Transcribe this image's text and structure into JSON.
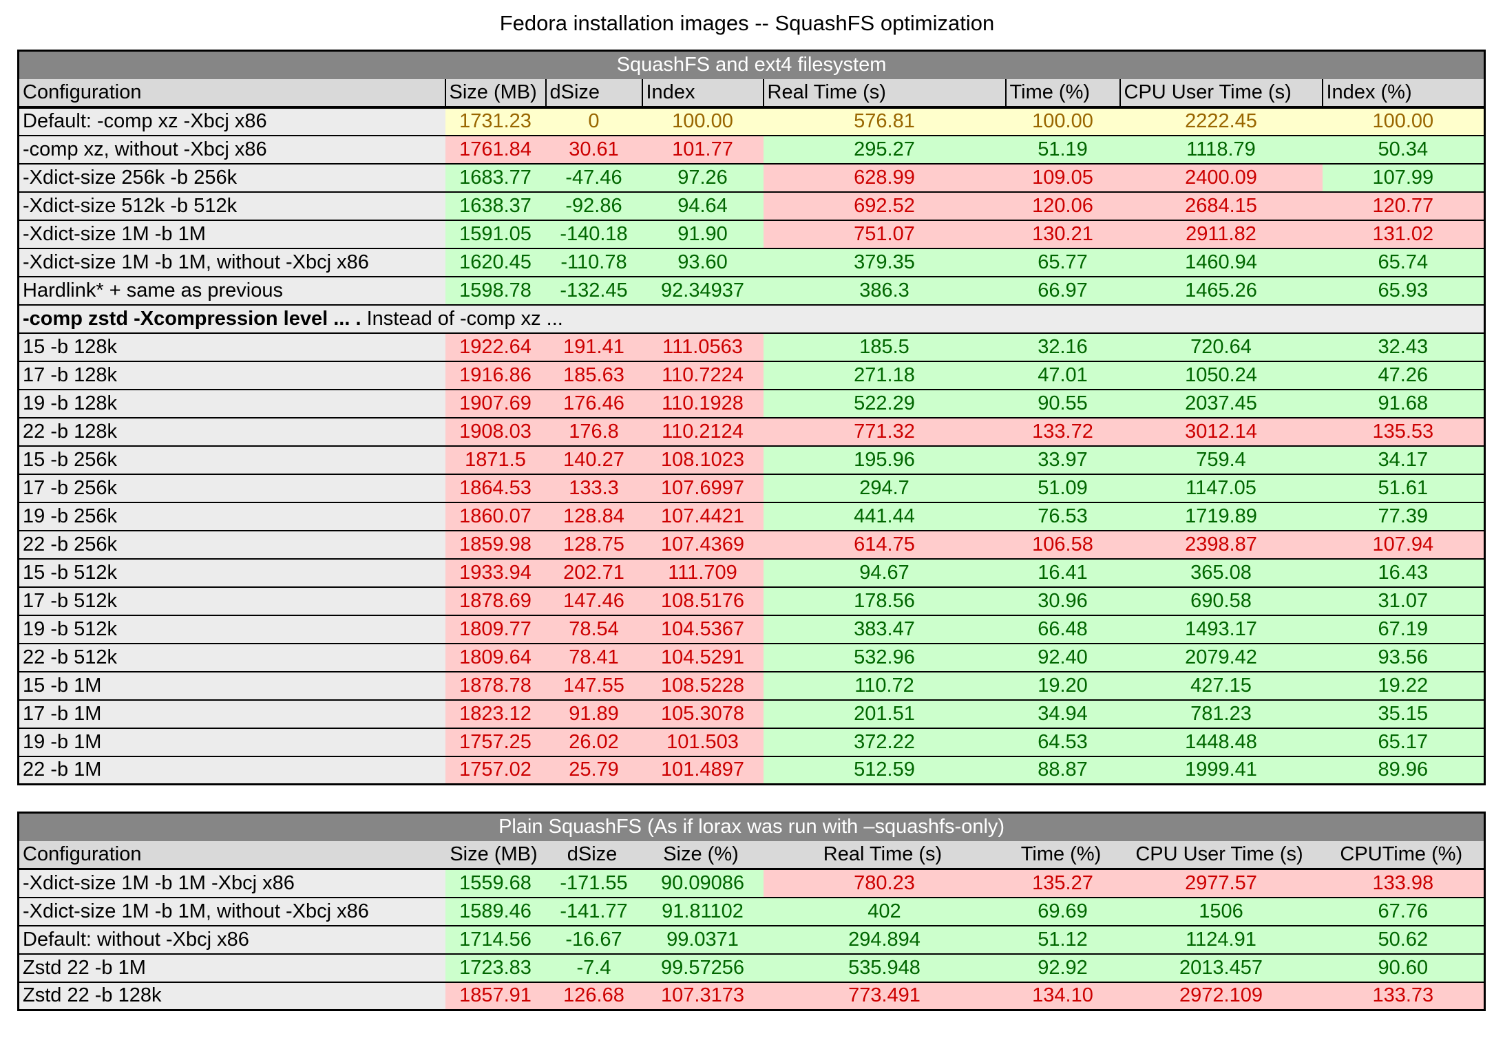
{
  "page_title": "Fedora installation images -- SquashFS optimization",
  "colors": {
    "good_bg": "#ccffcc",
    "good_text": "#006600",
    "bad_bg": "#ffcccc",
    "bad_text": "#cc0000",
    "neutral_bg": "#ffffcc",
    "neutral_text": "#996600",
    "title_bar_bg": "#868686",
    "title_bar_text": "#ffffff",
    "header_bg": "#d9d9d9",
    "config_bg": "#ececec"
  },
  "table1": {
    "title": "SquashFS and ext4 filesystem",
    "headers": [
      "Configuration",
      "Size (MB)",
      "dSize",
      "Index",
      "Real Time (s)",
      "Time (%)",
      "CPU User Time (s)",
      "Index (%)"
    ],
    "rows": [
      {
        "config": "Default: -comp xz -Xbcj x86",
        "cells": [
          {
            "v": "1731.23",
            "s": "n"
          },
          {
            "v": "0",
            "s": "n"
          },
          {
            "v": "100.00",
            "s": "n"
          },
          {
            "v": "576.81",
            "s": "n"
          },
          {
            "v": "100.00",
            "s": "n"
          },
          {
            "v": "2222.45",
            "s": "n"
          },
          {
            "v": "100.00",
            "s": "n"
          }
        ]
      },
      {
        "config": "-comp xz, without -Xbcj x86",
        "cells": [
          {
            "v": "1761.84",
            "s": "b"
          },
          {
            "v": "30.61",
            "s": "b"
          },
          {
            "v": "101.77",
            "s": "b"
          },
          {
            "v": "295.27",
            "s": "g"
          },
          {
            "v": "51.19",
            "s": "g"
          },
          {
            "v": "1118.79",
            "s": "g"
          },
          {
            "v": "50.34",
            "s": "g"
          }
        ]
      },
      {
        "config": "-Xdict-size 256k -b 256k",
        "cells": [
          {
            "v": "1683.77",
            "s": "g"
          },
          {
            "v": "-47.46",
            "s": "g"
          },
          {
            "v": "97.26",
            "s": "g"
          },
          {
            "v": "628.99",
            "s": "b"
          },
          {
            "v": "109.05",
            "s": "b"
          },
          {
            "v": "2400.09",
            "s": "b"
          },
          {
            "v": "107.99",
            "s": "g"
          }
        ]
      },
      {
        "config": "-Xdict-size 512k -b 512k",
        "cells": [
          {
            "v": "1638.37",
            "s": "g"
          },
          {
            "v": "-92.86",
            "s": "g"
          },
          {
            "v": "94.64",
            "s": "g"
          },
          {
            "v": "692.52",
            "s": "b"
          },
          {
            "v": "120.06",
            "s": "b"
          },
          {
            "v": "2684.15",
            "s": "b"
          },
          {
            "v": "120.77",
            "s": "b"
          }
        ]
      },
      {
        "config": "-Xdict-size 1M -b 1M",
        "cells": [
          {
            "v": "1591.05",
            "s": "g"
          },
          {
            "v": "-140.18",
            "s": "g"
          },
          {
            "v": "91.90",
            "s": "g"
          },
          {
            "v": "751.07",
            "s": "b"
          },
          {
            "v": "130.21",
            "s": "b"
          },
          {
            "v": "2911.82",
            "s": "b"
          },
          {
            "v": "131.02",
            "s": "b"
          }
        ]
      },
      {
        "config": "-Xdict-size 1M -b 1M, without -Xbcj x86",
        "cells": [
          {
            "v": "1620.45",
            "s": "g"
          },
          {
            "v": "-110.78",
            "s": "g"
          },
          {
            "v": "93.60",
            "s": "g"
          },
          {
            "v": "379.35",
            "s": "g"
          },
          {
            "v": "65.77",
            "s": "g"
          },
          {
            "v": "1460.94",
            "s": "g"
          },
          {
            "v": "65.74",
            "s": "g"
          }
        ]
      },
      {
        "config": "Hardlink* + same as previous",
        "cells": [
          {
            "v": "1598.78",
            "s": "g"
          },
          {
            "v": "-132.45",
            "s": "g"
          },
          {
            "v": "92.34937",
            "s": "g"
          },
          {
            "v": "386.3",
            "s": "g"
          },
          {
            "v": "66.97",
            "s": "g"
          },
          {
            "v": "1465.26",
            "s": "g"
          },
          {
            "v": "65.93",
            "s": "g"
          }
        ]
      },
      {
        "subtitle_bold": "-comp zstd -Xcompression level ... .",
        "subtitle_rest": " Instead of -comp xz ..."
      },
      {
        "config": "15 -b 128k",
        "cells": [
          {
            "v": "1922.64",
            "s": "b"
          },
          {
            "v": "191.41",
            "s": "b"
          },
          {
            "v": "111.0563",
            "s": "b"
          },
          {
            "v": "185.5",
            "s": "g"
          },
          {
            "v": "32.16",
            "s": "g"
          },
          {
            "v": "720.64",
            "s": "g"
          },
          {
            "v": "32.43",
            "s": "g"
          }
        ]
      },
      {
        "config": "17 -b 128k",
        "cells": [
          {
            "v": "1916.86",
            "s": "b"
          },
          {
            "v": "185.63",
            "s": "b"
          },
          {
            "v": "110.7224",
            "s": "b"
          },
          {
            "v": "271.18",
            "s": "g"
          },
          {
            "v": "47.01",
            "s": "g"
          },
          {
            "v": "1050.24",
            "s": "g"
          },
          {
            "v": "47.26",
            "s": "g"
          }
        ]
      },
      {
        "config": "19 -b 128k",
        "cells": [
          {
            "v": "1907.69",
            "s": "b"
          },
          {
            "v": "176.46",
            "s": "b"
          },
          {
            "v": "110.1928",
            "s": "b"
          },
          {
            "v": "522.29",
            "s": "g"
          },
          {
            "v": "90.55",
            "s": "g"
          },
          {
            "v": "2037.45",
            "s": "g"
          },
          {
            "v": "91.68",
            "s": "g"
          }
        ]
      },
      {
        "config": "22 -b 128k",
        "cells": [
          {
            "v": "1908.03",
            "s": "b"
          },
          {
            "v": "176.8",
            "s": "b"
          },
          {
            "v": "110.2124",
            "s": "b"
          },
          {
            "v": "771.32",
            "s": "b"
          },
          {
            "v": "133.72",
            "s": "b"
          },
          {
            "v": "3012.14",
            "s": "b"
          },
          {
            "v": "135.53",
            "s": "b"
          }
        ]
      },
      {
        "config": "15 -b 256k",
        "cells": [
          {
            "v": "1871.5",
            "s": "b"
          },
          {
            "v": "140.27",
            "s": "b"
          },
          {
            "v": "108.1023",
            "s": "b"
          },
          {
            "v": "195.96",
            "s": "g"
          },
          {
            "v": "33.97",
            "s": "g"
          },
          {
            "v": "759.4",
            "s": "g"
          },
          {
            "v": "34.17",
            "s": "g"
          }
        ]
      },
      {
        "config": "17 -b 256k",
        "cells": [
          {
            "v": "1864.53",
            "s": "b"
          },
          {
            "v": "133.3",
            "s": "b"
          },
          {
            "v": "107.6997",
            "s": "b"
          },
          {
            "v": "294.7",
            "s": "g"
          },
          {
            "v": "51.09",
            "s": "g"
          },
          {
            "v": "1147.05",
            "s": "g"
          },
          {
            "v": "51.61",
            "s": "g"
          }
        ]
      },
      {
        "config": "19 -b 256k",
        "cells": [
          {
            "v": "1860.07",
            "s": "b"
          },
          {
            "v": "128.84",
            "s": "b"
          },
          {
            "v": "107.4421",
            "s": "b"
          },
          {
            "v": "441.44",
            "s": "g"
          },
          {
            "v": "76.53",
            "s": "g"
          },
          {
            "v": "1719.89",
            "s": "g"
          },
          {
            "v": "77.39",
            "s": "g"
          }
        ]
      },
      {
        "config": "22 -b 256k",
        "cells": [
          {
            "v": "1859.98",
            "s": "b"
          },
          {
            "v": "128.75",
            "s": "b"
          },
          {
            "v": "107.4369",
            "s": "b"
          },
          {
            "v": "614.75",
            "s": "b"
          },
          {
            "v": "106.58",
            "s": "b"
          },
          {
            "v": "2398.87",
            "s": "b"
          },
          {
            "v": "107.94",
            "s": "b"
          }
        ]
      },
      {
        "config": "15 -b 512k",
        "cells": [
          {
            "v": "1933.94",
            "s": "b"
          },
          {
            "v": "202.71",
            "s": "b"
          },
          {
            "v": "111.709",
            "s": "b"
          },
          {
            "v": "94.67",
            "s": "g"
          },
          {
            "v": "16.41",
            "s": "g"
          },
          {
            "v": "365.08",
            "s": "g"
          },
          {
            "v": "16.43",
            "s": "g"
          }
        ]
      },
      {
        "config": "17 -b 512k",
        "cells": [
          {
            "v": "1878.69",
            "s": "b"
          },
          {
            "v": "147.46",
            "s": "b"
          },
          {
            "v": "108.5176",
            "s": "b"
          },
          {
            "v": "178.56",
            "s": "g"
          },
          {
            "v": "30.96",
            "s": "g"
          },
          {
            "v": "690.58",
            "s": "g"
          },
          {
            "v": "31.07",
            "s": "g"
          }
        ]
      },
      {
        "config": "19 -b 512k",
        "cells": [
          {
            "v": "1809.77",
            "s": "b"
          },
          {
            "v": "78.54",
            "s": "b"
          },
          {
            "v": "104.5367",
            "s": "b"
          },
          {
            "v": "383.47",
            "s": "g"
          },
          {
            "v": "66.48",
            "s": "g"
          },
          {
            "v": "1493.17",
            "s": "g"
          },
          {
            "v": "67.19",
            "s": "g"
          }
        ]
      },
      {
        "config": "22 -b 512k",
        "cells": [
          {
            "v": "1809.64",
            "s": "b"
          },
          {
            "v": "78.41",
            "s": "b"
          },
          {
            "v": "104.5291",
            "s": "b"
          },
          {
            "v": "532.96",
            "s": "g"
          },
          {
            "v": "92.40",
            "s": "g"
          },
          {
            "v": "2079.42",
            "s": "g"
          },
          {
            "v": "93.56",
            "s": "g"
          }
        ]
      },
      {
        "config": "15 -b 1M",
        "cells": [
          {
            "v": "1878.78",
            "s": "b"
          },
          {
            "v": "147.55",
            "s": "b"
          },
          {
            "v": "108.5228",
            "s": "b"
          },
          {
            "v": "110.72",
            "s": "g"
          },
          {
            "v": "19.20",
            "s": "g"
          },
          {
            "v": "427.15",
            "s": "g"
          },
          {
            "v": "19.22",
            "s": "g"
          }
        ]
      },
      {
        "config": "17 -b 1M",
        "cells": [
          {
            "v": "1823.12",
            "s": "b"
          },
          {
            "v": "91.89",
            "s": "b"
          },
          {
            "v": "105.3078",
            "s": "b"
          },
          {
            "v": "201.51",
            "s": "g"
          },
          {
            "v": "34.94",
            "s": "g"
          },
          {
            "v": "781.23",
            "s": "g"
          },
          {
            "v": "35.15",
            "s": "g"
          }
        ]
      },
      {
        "config": "19 -b 1M",
        "cells": [
          {
            "v": "1757.25",
            "s": "b"
          },
          {
            "v": "26.02",
            "s": "b"
          },
          {
            "v": "101.503",
            "s": "b"
          },
          {
            "v": "372.22",
            "s": "g"
          },
          {
            "v": "64.53",
            "s": "g"
          },
          {
            "v": "1448.48",
            "s": "g"
          },
          {
            "v": "65.17",
            "s": "g"
          }
        ]
      },
      {
        "config": "22 -b 1M",
        "cells": [
          {
            "v": "1757.02",
            "s": "b"
          },
          {
            "v": "25.79",
            "s": "b"
          },
          {
            "v": "101.4897",
            "s": "b"
          },
          {
            "v": "512.59",
            "s": "g"
          },
          {
            "v": "88.87",
            "s": "g"
          },
          {
            "v": "1999.41",
            "s": "g"
          },
          {
            "v": "89.96",
            "s": "g"
          }
        ]
      }
    ]
  },
  "table2": {
    "title": "Plain SquashFS (As if lorax was run with –squashfs-only)",
    "headers": [
      "Configuration",
      "Size (MB)",
      "dSize",
      "Size (%)",
      "Real Time (s)",
      "Time (%)",
      "CPU User Time (s)",
      "CPUTime (%)"
    ],
    "rows": [
      {
        "config": "-Xdict-size 1M -b 1M -Xbcj x86",
        "cells": [
          {
            "v": "1559.68",
            "s": "g"
          },
          {
            "v": "-171.55",
            "s": "g"
          },
          {
            "v": "90.09086",
            "s": "g"
          },
          {
            "v": "780.23",
            "s": "b"
          },
          {
            "v": "135.27",
            "s": "b"
          },
          {
            "v": "2977.57",
            "s": "b"
          },
          {
            "v": "133.98",
            "s": "b"
          }
        ]
      },
      {
        "config": "-Xdict-size 1M -b 1M, without -Xbcj x86",
        "cells": [
          {
            "v": "1589.46",
            "s": "g"
          },
          {
            "v": "-141.77",
            "s": "g"
          },
          {
            "v": "91.81102",
            "s": "g"
          },
          {
            "v": "402",
            "s": "g"
          },
          {
            "v": "69.69",
            "s": "g"
          },
          {
            "v": "1506",
            "s": "g"
          },
          {
            "v": "67.76",
            "s": "g"
          }
        ]
      },
      {
        "config": "Default: without -Xbcj x86",
        "cells": [
          {
            "v": "1714.56",
            "s": "g"
          },
          {
            "v": "-16.67",
            "s": "g"
          },
          {
            "v": "99.0371",
            "s": "g"
          },
          {
            "v": "294.894",
            "s": "g"
          },
          {
            "v": "51.12",
            "s": "g"
          },
          {
            "v": "1124.91",
            "s": "g"
          },
          {
            "v": "50.62",
            "s": "g"
          }
        ]
      },
      {
        "config": "Zstd 22 -b 1M",
        "cells": [
          {
            "v": "1723.83",
            "s": "g"
          },
          {
            "v": "-7.4",
            "s": "g"
          },
          {
            "v": "99.57256",
            "s": "g"
          },
          {
            "v": "535.948",
            "s": "g"
          },
          {
            "v": "92.92",
            "s": "g"
          },
          {
            "v": "2013.457",
            "s": "g"
          },
          {
            "v": "90.60",
            "s": "g"
          }
        ]
      },
      {
        "config": "Zstd 22 -b 128k",
        "cells": [
          {
            "v": "1857.91",
            "s": "b"
          },
          {
            "v": "126.68",
            "s": "b"
          },
          {
            "v": "107.3173",
            "s": "b"
          },
          {
            "v": "773.491",
            "s": "b"
          },
          {
            "v": "134.10",
            "s": "b"
          },
          {
            "v": "2972.109",
            "s": "b"
          },
          {
            "v": "133.73",
            "s": "b"
          }
        ]
      }
    ]
  }
}
